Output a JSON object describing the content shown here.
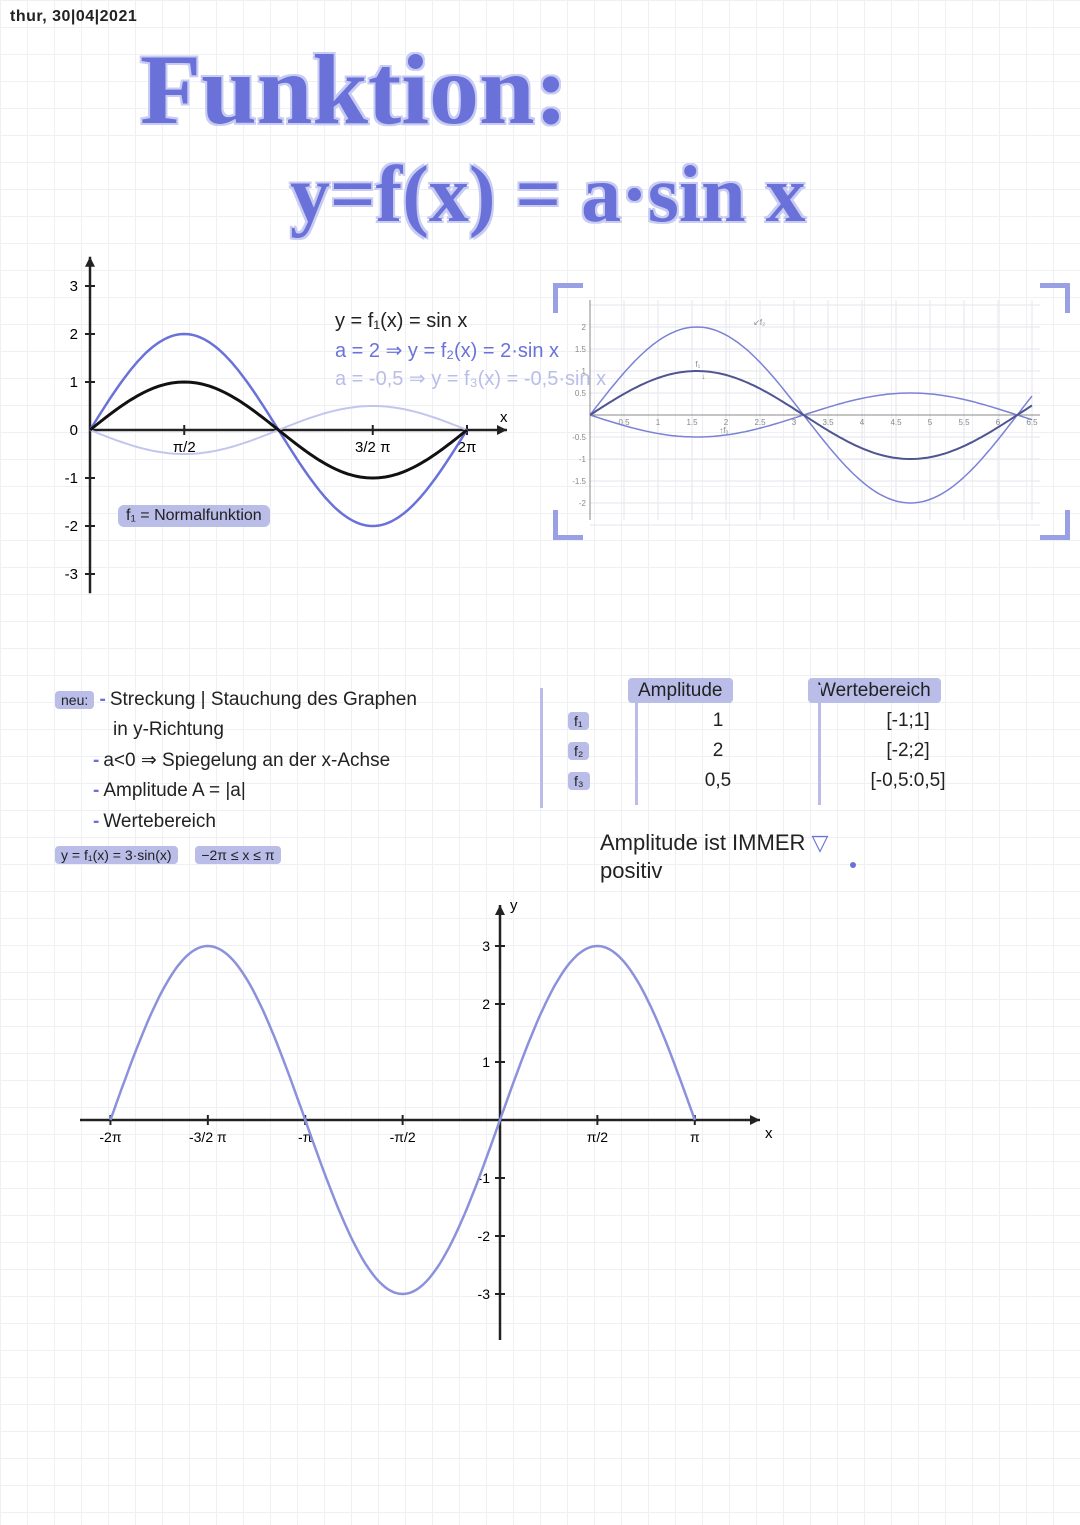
{
  "date": "thur, 30|04|2021",
  "title_line1": "Funktion:",
  "title_line2": "y=f(x) = a·sin x",
  "chart1": {
    "eq1": "y = f₁(x) = sin x",
    "eq2": "a = 2  ⇒ y = f₂(x) = 2·sin x",
    "eq3": "a = -0,5 ⇒ y = f₃(x) =  -0,5·sin x",
    "normal_label": "f₁ = Normalfunktion",
    "x_axis_label": "x",
    "x_ticks": [
      "π/2",
      "3/2 π",
      "2π"
    ],
    "y_ticks": [
      -3,
      -2,
      -1,
      0,
      1,
      2,
      3
    ],
    "amplitudes": {
      "f1": 1,
      "f2": 2,
      "f3": -0.5
    },
    "colors": {
      "f1": "#111111",
      "f2": "#6a72d9",
      "f3": "#c2c6ee",
      "axis": "#222222"
    },
    "stroke_w": {
      "f1": 3,
      "f2": 2.5,
      "f3": 2
    },
    "xlim": [
      0,
      6.8
    ],
    "ylim": [
      -3.5,
      3.5
    ],
    "bg": "#ffffff"
  },
  "chart2": {
    "labels": {
      "f1": "f₁",
      "f2": "f₂",
      "f3": "f₃"
    },
    "amplitudes": {
      "f1": 1,
      "f2": 2,
      "f3": -0.5
    },
    "colors": {
      "f1": "#4e5590",
      "f2": "#7a81d6",
      "f3": "#7a81d6",
      "axis": "#888888",
      "grid": "#e5e6ee"
    },
    "x_ticks": [
      0.5,
      1,
      1.5,
      2,
      2.5,
      3,
      3.5,
      4,
      4.5,
      5,
      5.5,
      6,
      6.5
    ],
    "y_ticks": [
      -2,
      -1.5,
      -1,
      -0.5,
      0.5,
      1,
      1.5,
      2
    ],
    "xlim": [
      0,
      6.5
    ],
    "ylim": [
      -2.3,
      2.3
    ]
  },
  "notes": {
    "heading": "neu:",
    "lines": {
      "a": "Streckung | Stauchung des Graphen",
      "a2": "in y-Richtung",
      "b": "a<0 ⇒ Spiegelung an der x-Achse",
      "c": "Amplitude A = |a|",
      "d": "Wertebereich"
    }
  },
  "table": {
    "headers": {
      "c1": "",
      "c2": "Amplitude",
      "c3": "Wertebereich"
    },
    "rows": [
      {
        "name": "f₁",
        "amp": "1",
        "range": "[-1;1]"
      },
      {
        "name": "f₂",
        "amp": "2",
        "range": "[-2;2]"
      },
      {
        "name": "f₃",
        "amp": "0,5",
        "range": "[-0,5:0,5]"
      }
    ],
    "note1": "Amplitude ist IMMER",
    "note2": "positiv"
  },
  "chart3": {
    "eq": "y = f₁(x) = 3·sin(x)",
    "domain": "−2π ≤ x ≤ π",
    "amplitude": 3,
    "color": "#8b91db",
    "axis_color": "#222222",
    "x_ticks": [
      "-2π",
      "-3/2 π",
      "-π",
      "-π/2",
      "π/2",
      "π"
    ],
    "y_ticks": [
      -3,
      -2,
      -1,
      1,
      2,
      3
    ],
    "x_label": "x",
    "y_label": "y",
    "xlim": [
      -7,
      4
    ],
    "ylim": [
      -3.5,
      3.5
    ]
  }
}
